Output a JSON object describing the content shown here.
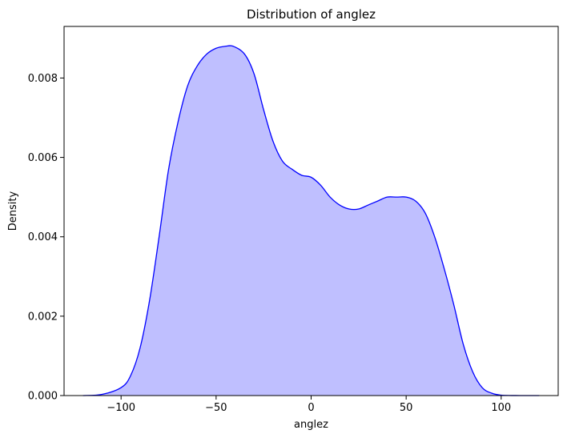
{
  "chart_data": {
    "type": "area",
    "title": "Distribution of anglez",
    "xlabel": "anglez",
    "ylabel": "Density",
    "xlim": [
      -130,
      130
    ],
    "ylim": [
      0,
      0.0093
    ],
    "xticks": [
      -100,
      -50,
      0,
      50,
      100
    ],
    "xtick_labels": [
      "−100",
      "−50",
      "0",
      "50",
      "100"
    ],
    "yticks": [
      0,
      0.002,
      0.004,
      0.006,
      0.008
    ],
    "ytick_labels": [
      "0.000",
      "0.002",
      "0.004",
      "0.006",
      "0.008"
    ],
    "grid": false,
    "series": [
      {
        "x": [
          -120,
          -110,
          -100,
          -95,
          -90,
          -85,
          -80,
          -75,
          -70,
          -65,
          -60,
          -55,
          -50,
          -45,
          -41,
          -35,
          -30,
          -25,
          -20,
          -15,
          -10,
          -5,
          0,
          5,
          10,
          15,
          20,
          25,
          30,
          35,
          40,
          45,
          50,
          55,
          60,
          65,
          70,
          75,
          80,
          85,
          90,
          95,
          100,
          110,
          120
        ],
        "y": [
          0.0,
          3e-05,
          0.0002,
          0.0005,
          0.0012,
          0.0024,
          0.004,
          0.0057,
          0.0069,
          0.0078,
          0.0083,
          0.0086,
          0.00875,
          0.0088,
          0.0088,
          0.0086,
          0.0081,
          0.0072,
          0.0064,
          0.0059,
          0.0057,
          0.00555,
          0.0055,
          0.0053,
          0.005,
          0.0048,
          0.0047,
          0.0047,
          0.0048,
          0.0049,
          0.005,
          0.005,
          0.005,
          0.0049,
          0.0046,
          0.004,
          0.0032,
          0.0023,
          0.0013,
          0.0006,
          0.0002,
          6e-05,
          1e-05,
          0.0,
          0.0
        ]
      }
    ],
    "colors": {
      "line": "#0000ff",
      "fill": "#bfbfff",
      "axes": "#000000",
      "background": "#ffffff"
    }
  }
}
